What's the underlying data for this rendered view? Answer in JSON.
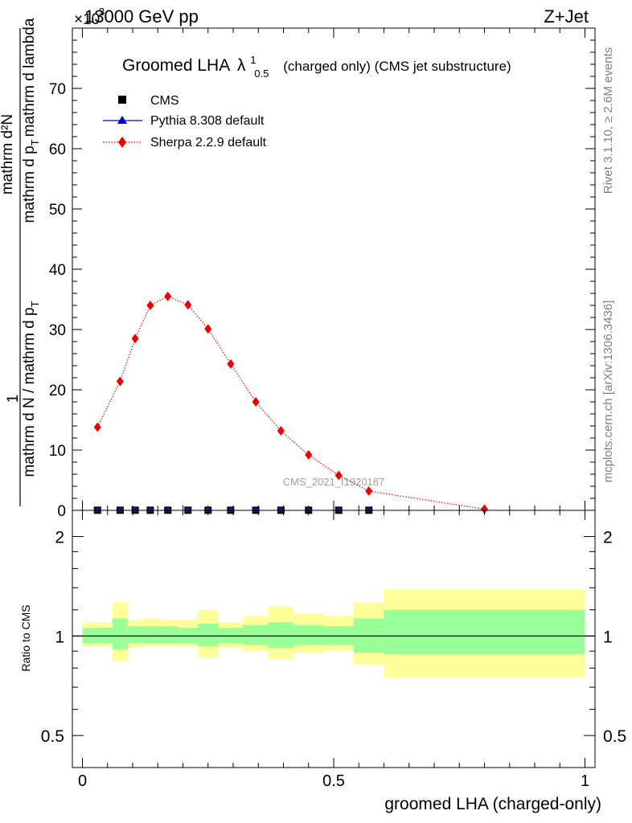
{
  "header": {
    "left": "13000 GeV pp",
    "right": "Z+Jet",
    "exponent": "×10",
    "exponent_power": "3"
  },
  "side_labels": {
    "rivet": "Rivet 3.1.10, ≥ 2.6M events",
    "mcplots": "mcplots.cern.ch [arXiv:1306.3436]"
  },
  "watermark": "CMS_2021_I1920187",
  "chart_data": [
    {
      "type": "line",
      "title": "Groomed LHA",
      "title_lambda": "λ",
      "title_sup": "1",
      "title_sub": "0.5",
      "title_suffix": "(charged only) (CMS jet substructure)",
      "ylabel_one": "1",
      "ylabel_left_expr": "mathrm d N / mathrm d p",
      "ylabel_left_expr_sub": "T",
      "ylabel_num": "mathrm d²N",
      "ylabel_den": "mathrm d p",
      "ylabel_den_sub": "T",
      "ylabel_den_suffix": "mathrm d lambda",
      "ylim": [
        0,
        80
      ],
      "xlim": [
        -0.02,
        1.02
      ],
      "y_ticks": [
        0,
        10,
        20,
        30,
        40,
        50,
        60,
        70
      ],
      "y_tick_labels": [
        "0",
        "10",
        "20",
        "30",
        "40",
        "50",
        "60",
        "70"
      ],
      "legend_position": "top-left",
      "series": [
        {
          "name": "CMS",
          "color": "#000000",
          "marker": "square",
          "x": [
            0.03,
            0.075,
            0.105,
            0.135,
            0.17,
            0.21,
            0.25,
            0.295,
            0.345,
            0.395,
            0.45,
            0.51,
            0.57
          ],
          "y": [
            0.02,
            0.02,
            0.02,
            0.02,
            0.02,
            0.02,
            0.02,
            0.02,
            0.02,
            0.02,
            0.02,
            0.02,
            0.02
          ]
        },
        {
          "name": "Pythia 8.308 default",
          "color": "#0000cc",
          "marker": "triangle",
          "x": [],
          "y": []
        },
        {
          "name": "Sherpa 2.2.9 default",
          "color": "#ee0000",
          "marker": "diamond",
          "line": "dotted",
          "x": [
            0.03,
            0.075,
            0.105,
            0.135,
            0.17,
            0.21,
            0.25,
            0.295,
            0.345,
            0.395,
            0.45,
            0.51,
            0.57,
            0.8
          ],
          "y": [
            13.8,
            21.4,
            28.5,
            34.0,
            35.5,
            34.1,
            30.1,
            24.3,
            18.0,
            13.2,
            9.2,
            5.8,
            3.2,
            0.2
          ]
        }
      ]
    },
    {
      "type": "area",
      "ylabel": "Ratio to CMS",
      "xlabel": "groomed LHA (charged-only)",
      "xlim": [
        -0.02,
        1.02
      ],
      "ylim": [
        0.4,
        2.4
      ],
      "log_y": true,
      "x_ticks": [
        0,
        0.5,
        1
      ],
      "x_tick_labels": [
        "0",
        "0.5",
        "1"
      ],
      "y_ticks": [
        0.5,
        1,
        2
      ],
      "y_tick_labels": [
        "0.5",
        "1",
        "2"
      ],
      "reference": 1,
      "inner_band_color": "#99ff99",
      "outer_band_color": "#ffff99",
      "bins": [
        {
          "x0": 0.0,
          "x1": 0.06,
          "inner": [
            0.95,
            1.06
          ],
          "outer": [
            0.93,
            1.1
          ]
        },
        {
          "x0": 0.06,
          "x1": 0.09,
          "inner": [
            0.91,
            1.13
          ],
          "outer": [
            0.84,
            1.27
          ]
        },
        {
          "x0": 0.09,
          "x1": 0.12,
          "inner": [
            0.95,
            1.07
          ],
          "outer": [
            0.92,
            1.12
          ]
        },
        {
          "x0": 0.12,
          "x1": 0.15,
          "inner": [
            0.95,
            1.07
          ],
          "outer": [
            0.93,
            1.13
          ]
        },
        {
          "x0": 0.15,
          "x1": 0.19,
          "inner": [
            0.95,
            1.07
          ],
          "outer": [
            0.93,
            1.12
          ]
        },
        {
          "x0": 0.19,
          "x1": 0.23,
          "inner": [
            0.95,
            1.06
          ],
          "outer": [
            0.93,
            1.12
          ]
        },
        {
          "x0": 0.23,
          "x1": 0.27,
          "inner": [
            0.93,
            1.09
          ],
          "outer": [
            0.86,
            1.2
          ]
        },
        {
          "x0": 0.27,
          "x1": 0.32,
          "inner": [
            0.95,
            1.06
          ],
          "outer": [
            0.92,
            1.1
          ]
        },
        {
          "x0": 0.32,
          "x1": 0.37,
          "inner": [
            0.94,
            1.08
          ],
          "outer": [
            0.9,
            1.15
          ]
        },
        {
          "x0": 0.37,
          "x1": 0.42,
          "inner": [
            0.92,
            1.1
          ],
          "outer": [
            0.85,
            1.23
          ]
        },
        {
          "x0": 0.42,
          "x1": 0.48,
          "inner": [
            0.94,
            1.08
          ],
          "outer": [
            0.89,
            1.17
          ]
        },
        {
          "x0": 0.48,
          "x1": 0.54,
          "inner": [
            0.94,
            1.07
          ],
          "outer": [
            0.9,
            1.15
          ]
        },
        {
          "x0": 0.54,
          "x1": 0.6,
          "inner": [
            0.89,
            1.13
          ],
          "outer": [
            0.82,
            1.26
          ]
        },
        {
          "x0": 0.6,
          "x1": 1.0,
          "inner": [
            0.88,
            1.2
          ],
          "outer": [
            0.75,
            1.38
          ]
        }
      ]
    }
  ]
}
